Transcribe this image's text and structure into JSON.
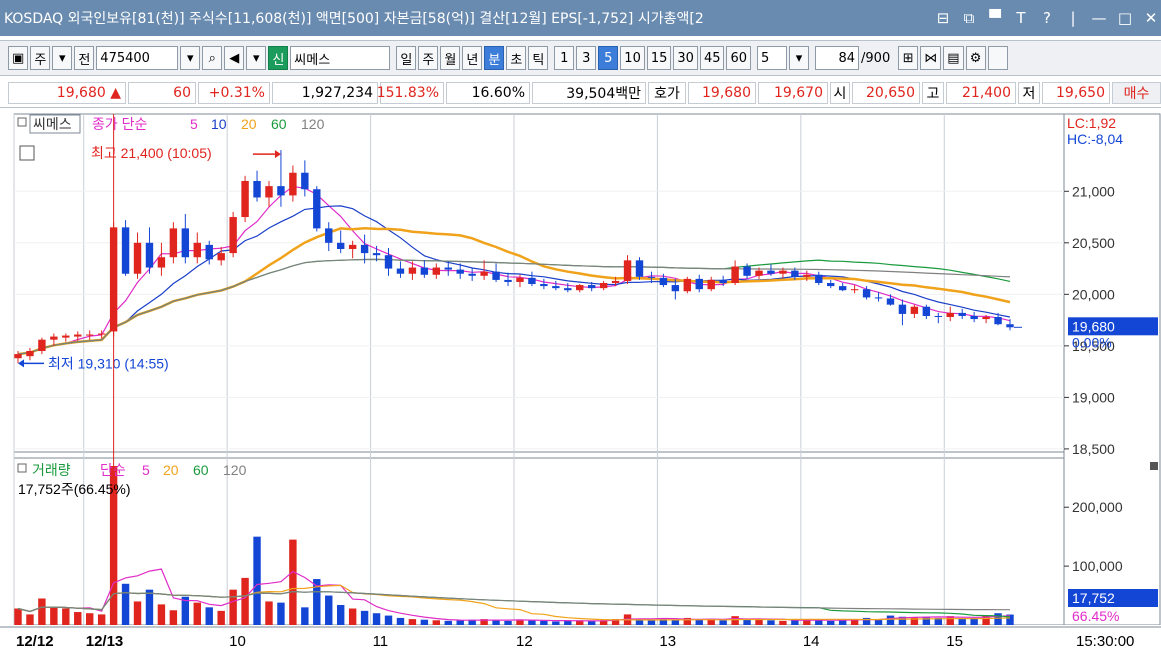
{
  "window": {
    "title": "KOSDAQ 외국인보유[81(천)] 주식수[11,608(천)] 액면[500] 자본금[58(억)] 결산[12월] EPS[-1,752] 시가총액[2",
    "buttons": [
      "⊟",
      "⧉",
      "▀",
      "T",
      "?",
      "|",
      "—",
      "□",
      "✕"
    ]
  },
  "toolbar": {
    "type_buttons": [
      "주",
      "전"
    ],
    "stock_code": "475400",
    "credit_label": "신",
    "stock_name": "씨메스",
    "period_buttons": [
      "일",
      "주",
      "월",
      "년",
      "분",
      "초",
      "틱"
    ],
    "active_period": "분",
    "interval_buttons": [
      "1",
      "3",
      "5",
      "10",
      "15",
      "30",
      "45",
      "60"
    ],
    "active_interval": "5",
    "interval_select": "5",
    "count_value": "84",
    "count_max": "/900"
  },
  "quote": {
    "price": "19,680 ▲",
    "change": "60",
    "change_rate": "+0.31%",
    "volume": "1,927,234",
    "volume_ratio": "151.83%",
    "turnover": "16.60%",
    "trade_value": "39,504백만",
    "ask_label": "호가",
    "ask1": "19,680",
    "ask2": "19,670",
    "open_label": "시",
    "open": "20,650",
    "high_label": "고",
    "high": "21,400",
    "low_label": "저",
    "low": "19,650",
    "buy_label": "매수"
  },
  "chart_data": [
    {
      "type": "candlestick",
      "name": "씨메스",
      "legend": {
        "prefix": "종가 단순",
        "periods": [
          "5",
          "10",
          "20",
          "60",
          "120"
        ],
        "colors": [
          "#e02cc8",
          "#1a3fc9",
          "#f0a21a",
          "#1a9a3c",
          "#808080"
        ]
      },
      "x_labels": [
        "12/12",
        "12/13",
        "10",
        "11",
        "12",
        "13",
        "14",
        "15",
        "15:30:00"
      ],
      "y_ticks": [
        18500,
        19000,
        19500,
        20000,
        20500,
        21000
      ],
      "ylim": [
        18470,
        21750
      ],
      "lc": "LC:1,92",
      "hc": "HC:-8,04",
      "high_annotation": "최고 21,400 (10:05)",
      "low_annotation": "최저 19,310 (14:55)",
      "last_price_label": "19,680",
      "last_pct_label": "0.00%",
      "candles": [
        [
          19380,
          19450,
          19330,
          19420
        ],
        [
          19400,
          19480,
          19360,
          19450
        ],
        [
          19450,
          19580,
          19420,
          19560
        ],
        [
          19560,
          19620,
          19500,
          19590
        ],
        [
          19580,
          19620,
          19540,
          19600
        ],
        [
          19590,
          19640,
          19550,
          19610
        ],
        [
          19600,
          19650,
          19560,
          19610
        ],
        [
          19610,
          19650,
          19570,
          19620
        ],
        [
          19640,
          20700,
          19590,
          20650
        ],
        [
          20650,
          20720,
          20180,
          20200
        ],
        [
          20200,
          20600,
          20150,
          20500
        ],
        [
          20500,
          20650,
          20200,
          20260
        ],
        [
          20260,
          20500,
          20180,
          20360
        ],
        [
          20360,
          20700,
          20300,
          20640
        ],
        [
          20640,
          20780,
          20300,
          20360
        ],
        [
          20360,
          20600,
          20300,
          20500
        ],
        [
          20480,
          20520,
          20290,
          20340
        ],
        [
          20330,
          20460,
          20280,
          20400
        ],
        [
          20400,
          20800,
          20360,
          20750
        ],
        [
          20750,
          21150,
          20700,
          21100
        ],
        [
          21100,
          21200,
          20900,
          20940
        ],
        [
          20940,
          21100,
          20850,
          21050
        ],
        [
          21050,
          21400,
          20850,
          20960
        ],
        [
          20960,
          21250,
          20900,
          21180
        ],
        [
          21180,
          21300,
          20950,
          21020
        ],
        [
          21020,
          21050,
          20610,
          20640
        ],
        [
          20640,
          20700,
          20420,
          20500
        ],
        [
          20500,
          20620,
          20400,
          20440
        ],
        [
          20440,
          20520,
          20350,
          20480
        ],
        [
          20480,
          20580,
          20300,
          20400
        ],
        [
          20400,
          20470,
          20320,
          20380
        ],
        [
          20380,
          20450,
          20180,
          20250
        ],
        [
          20250,
          20320,
          20160,
          20200
        ],
        [
          20200,
          20320,
          20140,
          20260
        ],
        [
          20260,
          20330,
          20160,
          20190
        ],
        [
          20190,
          20300,
          20150,
          20260
        ],
        [
          20260,
          20320,
          20180,
          20240
        ],
        [
          20240,
          20300,
          20150,
          20200
        ],
        [
          20200,
          20250,
          20130,
          20180
        ],
        [
          20180,
          20330,
          20140,
          20220
        ],
        [
          20220,
          20300,
          20120,
          20140
        ],
        [
          20140,
          20210,
          20080,
          20120
        ],
        [
          20120,
          20190,
          20070,
          20160
        ],
        [
          20160,
          20220,
          20080,
          20100
        ],
        [
          20100,
          20150,
          20050,
          20080
        ],
        [
          20080,
          20130,
          20040,
          20060
        ],
        [
          20060,
          20110,
          20020,
          20040
        ],
        [
          20040,
          20100,
          20020,
          20090
        ],
        [
          20090,
          20120,
          20030,
          20060
        ],
        [
          20060,
          20130,
          20040,
          20110
        ],
        [
          20110,
          20170,
          20080,
          20130
        ],
        [
          20130,
          20380,
          20100,
          20330
        ],
        [
          20330,
          20360,
          20140,
          20170
        ],
        [
          20170,
          20220,
          20110,
          20160
        ],
        [
          20160,
          20200,
          20070,
          20090
        ],
        [
          20090,
          20150,
          19950,
          20030
        ],
        [
          20030,
          20170,
          20010,
          20150
        ],
        [
          20150,
          20190,
          20020,
          20050
        ],
        [
          20050,
          20170,
          20030,
          20140
        ],
        [
          20140,
          20180,
          20080,
          20110
        ],
        [
          20110,
          20330,
          20090,
          20270
        ],
        [
          20270,
          20300,
          20150,
          20180
        ],
        [
          20180,
          20260,
          20150,
          20230
        ],
        [
          20230,
          20290,
          20180,
          20200
        ],
        [
          20200,
          20260,
          20160,
          20230
        ],
        [
          20230,
          20260,
          20140,
          20170
        ],
        [
          20170,
          20230,
          20130,
          20190
        ],
        [
          20190,
          20220,
          20090,
          20110
        ],
        [
          20110,
          20140,
          20060,
          20080
        ],
        [
          20080,
          20110,
          20030,
          20040
        ],
        [
          20040,
          20090,
          20010,
          20050
        ],
        [
          20050,
          20080,
          19950,
          19970
        ],
        [
          19970,
          20020,
          19930,
          19960
        ],
        [
          19960,
          20000,
          19890,
          19900
        ],
        [
          19900,
          19950,
          19700,
          19810
        ],
        [
          19810,
          19900,
          19770,
          19880
        ],
        [
          19880,
          19900,
          19760,
          19790
        ],
        [
          19790,
          19820,
          19720,
          19780
        ],
        [
          19780,
          19880,
          19740,
          19820
        ],
        [
          19820,
          19860,
          19760,
          19790
        ],
        [
          19790,
          19830,
          19730,
          19760
        ],
        [
          19760,
          19800,
          19720,
          19780
        ],
        [
          19780,
          19820,
          19700,
          19710
        ],
        [
          19710,
          19760,
          19650,
          19680
        ]
      ]
    },
    {
      "type": "bar",
      "name": "거래량",
      "legend": {
        "prefix": "단순",
        "periods": [
          "5",
          "20",
          "60",
          "120"
        ],
        "colors": [
          "#e02cc8",
          "#f0a21a",
          "#1a9a3c",
          "#808080"
        ]
      },
      "summary": "17,752주(66.45%)",
      "y_ticks": [
        100000,
        200000
      ],
      "ylim": [
        0,
        270000
      ],
      "last_volume_label": "17,752",
      "last_ratio_label": "66.45%",
      "values": [
        28000,
        18000,
        45000,
        30000,
        28000,
        22000,
        20000,
        18000,
        270000,
        70000,
        40000,
        60000,
        35000,
        25000,
        48000,
        38000,
        30000,
        24000,
        60000,
        80000,
        150000,
        40000,
        38000,
        145000,
        30000,
        78000,
        50000,
        34000,
        28000,
        24000,
        20000,
        16000,
        12000,
        10000,
        9000,
        8000,
        7000,
        8000,
        9000,
        10000,
        8000,
        7000,
        9000,
        8000,
        7000,
        6000,
        7000,
        8000,
        7000,
        8000,
        10000,
        18000,
        9000,
        8000,
        10000,
        9000,
        12000,
        9000,
        10000,
        8000,
        15000,
        9000,
        10000,
        8000,
        7000,
        8000,
        9000,
        10000,
        7000,
        8000,
        9000,
        12000,
        10000,
        16000,
        14000,
        13000,
        14000,
        12000,
        15000,
        12000,
        12000,
        16000,
        20000,
        17752
      ]
    }
  ]
}
